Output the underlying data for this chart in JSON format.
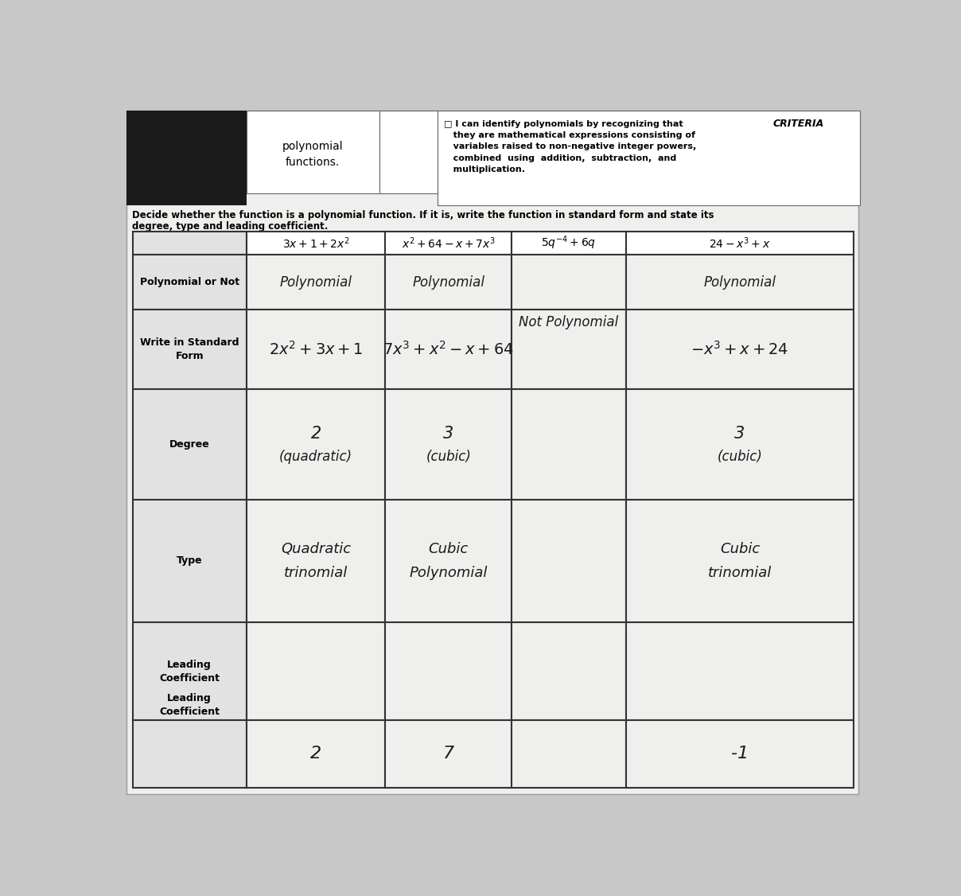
{
  "bg_color": "#c8c8c8",
  "paper_color": "#efefed",
  "col_headers_math": [
    "$3x + 1 + 2x^2$",
    "$x^2 + 64 - x + 7x^3$",
    "$5q^{-4} + 6q$",
    "$24 - x^3 + x$"
  ],
  "row_labels": [
    "Polynomial or Not",
    "Write in Standard\nForm",
    "Degree",
    "Type",
    "Leading\nCoefficient"
  ],
  "poly_or_not": [
    "Polynomial",
    "Polynomial",
    "Not Polynomial",
    "Polynomial"
  ],
  "standard_form_math": [
    "$2x^2+3x+1$",
    "$7x^3+x^2-x+64$",
    "",
    "$-x^3+x+24$"
  ],
  "degree_line1": [
    "2",
    "3",
    "",
    "3"
  ],
  "degree_line2": [
    "(quadratic)",
    "(cubic)",
    "",
    "(cubic)"
  ],
  "type_line1": [
    "Quadratic",
    "Cubic",
    "",
    "Cubic"
  ],
  "type_line2": [
    "trinomial",
    "Polynomial",
    "",
    "trinomial"
  ],
  "leading_coeff": [
    "2",
    "7",
    "",
    "-1"
  ],
  "header_poly_text": [
    "polynomial",
    "functions."
  ],
  "criteria_title": "CRITERIA",
  "criteria_body": "□ I can identify polynomials by recognizing that\n   they are mathematical expressions consisting of\n   variables raised to non-negative integer powers,\n   combined  using  addition,  subtraction,  and\n   multiplication.",
  "instruction1": "Decide whether the function is a polynomial function. If it is, write the function in standard form and state its",
  "instruction2": "degree, type and leading coefficient."
}
